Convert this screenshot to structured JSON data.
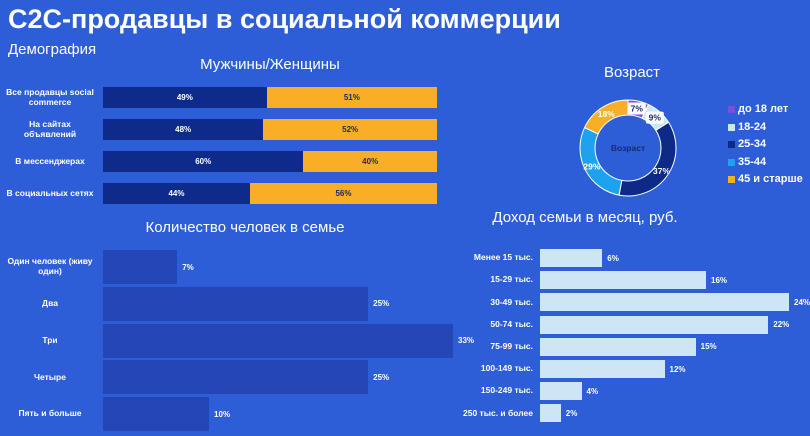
{
  "header": {
    "title": "C2C-продавцы в социальной коммерции",
    "subtitle": "Демография"
  },
  "chart_data": [
    {
      "type": "stacked-bar",
      "title": "Мужчины/Женщины",
      "categories": [
        "Все продавцы social commerce",
        "На сайтах объявлений",
        "В мессенджерах",
        "В социальных сетях"
      ],
      "series": [
        {
          "color": "#0e2b8c",
          "values": [
            49,
            48,
            60,
            44
          ],
          "value_labels": [
            "49%",
            "48%",
            "60%",
            "44%"
          ]
        },
        {
          "color": "#f8ae26",
          "values": [
            51,
            52,
            40,
            56
          ],
          "value_labels": [
            "51%",
            "52%",
            "40%",
            "56%"
          ]
        }
      ]
    },
    {
      "type": "donut",
      "title": "Возраст",
      "center_label": "Возраст",
      "categories": [
        "до 18 лет",
        "18-24",
        "25-34",
        "35-44",
        "45 и старше"
      ],
      "values": [
        7,
        9,
        37,
        29,
        18
      ],
      "value_labels": [
        "7%",
        "9%",
        "37%",
        "29%",
        "18%"
      ],
      "colors": [
        "#7b4fd8",
        "#c9e6f6",
        "#0d2a86",
        "#1ea2f0",
        "#f8ae26"
      ]
    },
    {
      "type": "hbar",
      "title": "Количество человек в семье",
      "categories": [
        "Один человек (живу один)",
        "Два",
        "Три",
        "Четыре",
        "Пять и больше"
      ],
      "values": [
        7,
        25,
        33,
        25,
        10
      ],
      "value_labels": [
        "7%",
        "25%",
        "33%",
        "25%",
        "10%"
      ],
      "color": "#2446b6"
    },
    {
      "type": "hbar",
      "title": "Доход семьи в месяц, руб.",
      "categories": [
        "Менее 15 тыс.",
        "15-29 тыс.",
        "30-49 тыс.",
        "50-74 тыс.",
        "75-99 тыс.",
        "100-149 тыс.",
        "150-249 тыс.",
        "250 тыс. и более"
      ],
      "values": [
        6,
        16,
        24,
        22,
        15,
        12,
        4,
        2
      ],
      "value_labels": [
        "6%",
        "16%",
        "24%",
        "22%",
        "15%",
        "12%",
        "4%",
        "2%"
      ],
      "color": "#cde6f6"
    }
  ]
}
